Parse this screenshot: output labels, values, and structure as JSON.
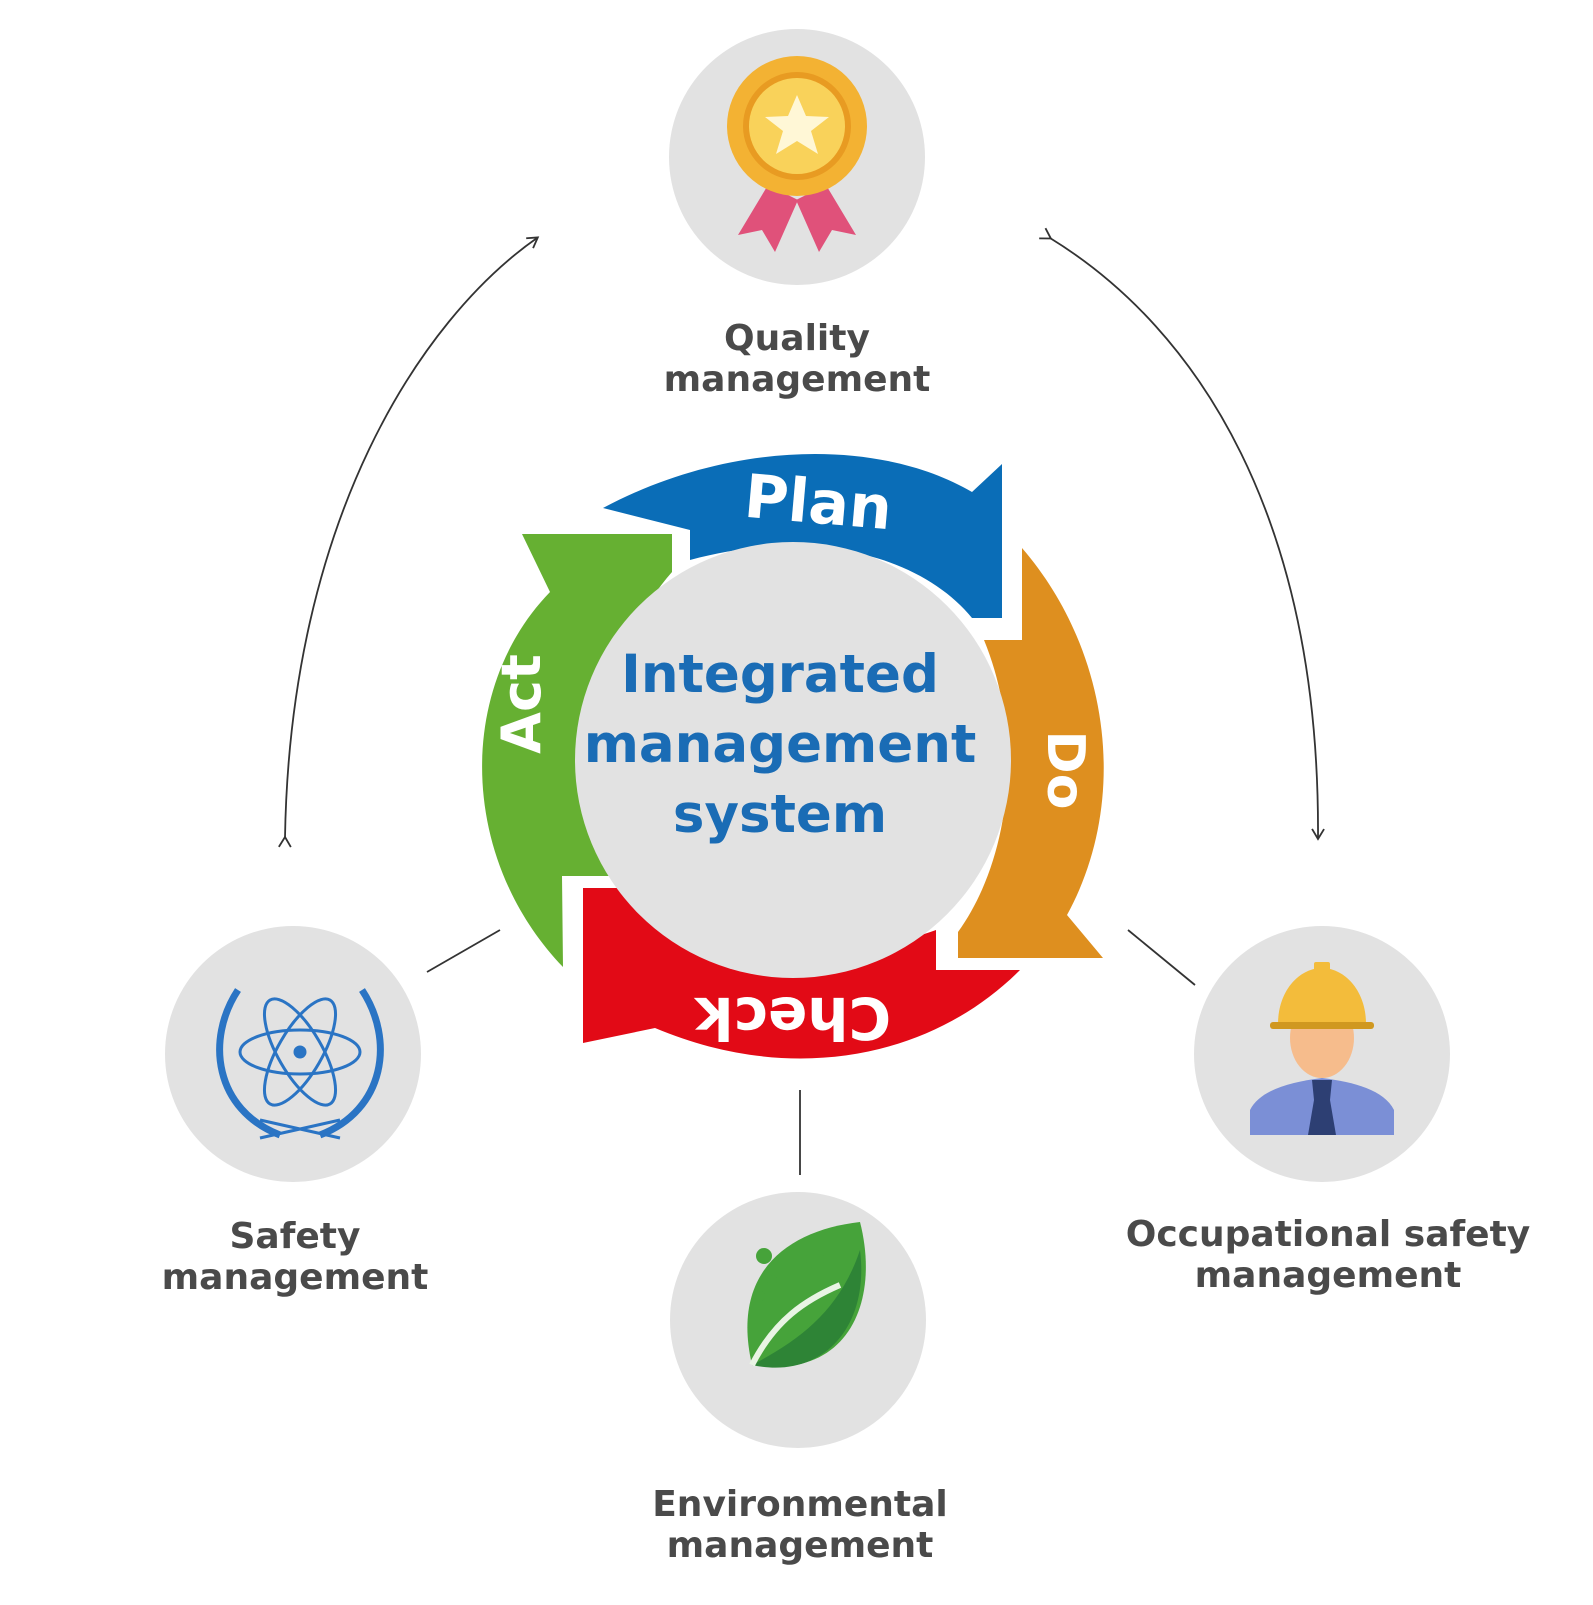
{
  "center": {
    "line1": "Integrated",
    "line2": "management",
    "line3": "system"
  },
  "cycle": {
    "plan": "Plan",
    "do": "Do",
    "check": "Check",
    "act": "Act"
  },
  "nodes": {
    "quality": {
      "line1": "Quality",
      "line2": "management",
      "icon": "award-medal-icon"
    },
    "safety": {
      "line1": "Safety",
      "line2": "management",
      "icon": "atom-laurel-icon"
    },
    "environmental": {
      "line1": "Environmental",
      "line2": "management",
      "icon": "leaf-icon"
    },
    "occupational": {
      "line1": "Occupational safety",
      "line2": "management",
      "icon": "construction-worker-icon"
    }
  },
  "colors": {
    "plan": "#0a6db7",
    "do": "#de8f1f",
    "check": "#e20a16",
    "act": "#66b032",
    "circle": "#e2e2e2",
    "center_text": "#1a6cb5",
    "label_text": "#4a4a4a"
  }
}
